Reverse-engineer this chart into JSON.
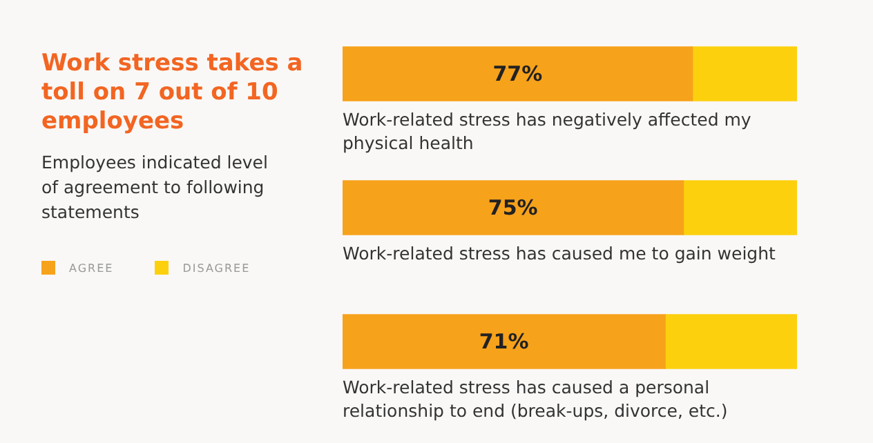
{
  "chart_data": {
    "type": "bar",
    "orientation": "horizontal",
    "stacked": true,
    "title": "Work stress takes a toll on 7 out of 10 employees",
    "subtitle": "Employees indicated level of agreement to following statements",
    "categories": [
      "Work-related stress has negatively affected my physical health",
      "Work-related stress has caused me to gain weight",
      "Work-related stress has caused a personal relationship to end (break-ups, divorce, etc.)"
    ],
    "series": [
      {
        "name": "AGREE",
        "color": "#f7a21b",
        "values": [
          77,
          75,
          71
        ],
        "value_labels": [
          "77%",
          "75%",
          "71%"
        ]
      },
      {
        "name": "DISAGREE",
        "color": "#fdd00e",
        "values": [
          23,
          25,
          29
        ]
      }
    ],
    "xlim": [
      0,
      100
    ],
    "tick_labels": false,
    "legend": "left"
  }
}
